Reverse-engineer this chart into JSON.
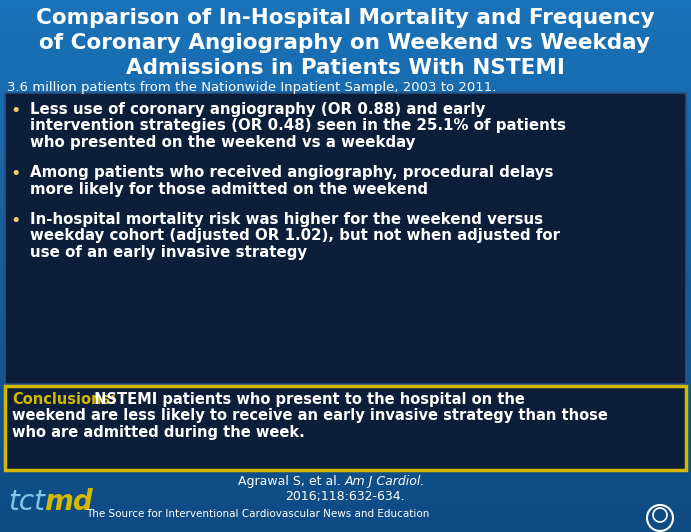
{
  "title_line1": "Comparison of In-Hospital Mortality and Frequency",
  "title_line2": "of Coronary Angiography on Weekend vs Weekday",
  "title_line3": "Admissions in Patients With NSTEMI",
  "subtitle": "3.6 million patients from the Nationwide Inpatient Sample, 2003 to 2011.",
  "bullet1_line1": "Less use of coronary angiography (OR 0.88) and early",
  "bullet1_line2": "intervention strategies (OR 0.48) seen in the 25.1% of patients",
  "bullet1_line3": "who presented on the weekend vs a weekday",
  "bullet2_line1": "Among patients who received angiography, procedural delays",
  "bullet2_line2": "more likely for those admitted on the weekend",
  "bullet3_line1": "In-hospital mortality risk was higher for the weekend versus",
  "bullet3_line2": "weekday cohort (adjusted OR 1.02), but not when adjusted for",
  "bullet3_line3": "use of an early invasive strategy",
  "conclusion_label": "Conclusions:",
  "conclusion_text_line1": " NSTEMI patients who present to the hospital on the",
  "conclusion_text_line2": "weekend are less likely to receive an early invasive strategy than those",
  "conclusion_text_line3": "who are admitted during the week.",
  "citation_regular": "Agrawal S, et al. ",
  "citation_italic": "Am J Cardiol.",
  "citation_line2": "2016;118:632-634.",
  "footer_tct": "tct",
  "footer_md": "md",
  "footer_text": "The Source for Interventional Cardiovascular News and Education",
  "bg_top": "#1a72b8",
  "bg_bottom": "#0e4a82",
  "panel_bg": "#0d1e3a",
  "panel_border": "#2a5080",
  "conc_bg": "#0d1e3a",
  "conc_border": "#d4b800",
  "title_color": "#ffffff",
  "subtitle_color": "#ffffff",
  "bullet_color": "#ffffff",
  "bullet_dot_color": "#f0d060",
  "conc_label_color": "#d4b800",
  "conc_text_color": "#ffffff",
  "citation_color": "#ffffff",
  "footer_tct_color": "#7ec8e8",
  "footer_md_color": "#d4b800",
  "footer_text_color": "#ffffff"
}
